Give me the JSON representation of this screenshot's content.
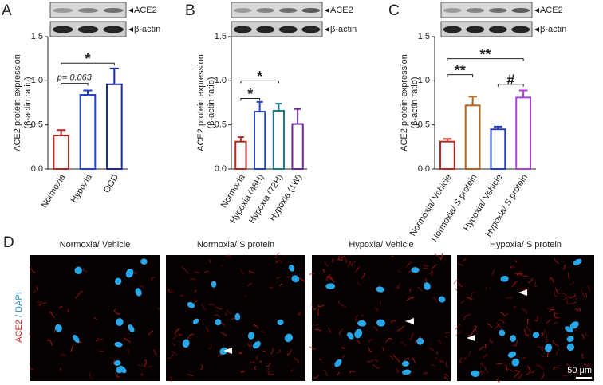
{
  "chart_data": [
    {
      "type": "bar",
      "panel_label": "A",
      "blot_labels": [
        "ACE2",
        "β-actin"
      ],
      "ylabel": [
        "ACE2 protein expression",
        "(β-actin ratio)"
      ],
      "categories": [
        "Normoxia",
        "Hypoxia",
        "OGD"
      ],
      "values": [
        0.38,
        0.84,
        0.96
      ],
      "errors": [
        0.06,
        0.05,
        0.18
      ],
      "colors": [
        "#b22a22",
        "#2340c8",
        "#1b2aa0"
      ],
      "ylim": [
        0,
        1.5
      ],
      "yticks": [
        {
          "value": 0,
          "label": "0.0"
        },
        0.5,
        {
          "value": 1,
          "label": "1.0"
        },
        1.5
      ],
      "annotations": [
        {
          "text": "*",
          "from": 0,
          "to": 2,
          "y": 1.2
        },
        {
          "text": "p= 0.063",
          "from": 0,
          "to": 1,
          "y": 0.97
        }
      ]
    },
    {
      "type": "bar",
      "panel_label": "B",
      "blot_labels": [
        "ACE2",
        "β-actin"
      ],
      "ylabel": [
        "ACE2 protein expression",
        "(β-actin ratio)"
      ],
      "categories": [
        "Normoxia",
        "Hypoxia (48H)",
        "Hypoxia (72H)",
        "Hypoxia (1W)"
      ],
      "values": [
        0.31,
        0.65,
        0.66,
        0.51
      ],
      "errors": [
        0.05,
        0.11,
        0.08,
        0.17
      ],
      "colors": [
        "#b22a22",
        "#2340c8",
        "#1a7a8a",
        "#6a2a9a"
      ],
      "ylim": [
        0,
        1.5
      ],
      "yticks": [
        {
          "value": 0,
          "label": "0.0"
        },
        0.5,
        {
          "value": 1,
          "label": "1.0"
        },
        1.5
      ],
      "annotations": [
        {
          "text": "*",
          "from": 0,
          "to": 1,
          "y": 0.8
        },
        {
          "text": "*",
          "from": 0,
          "to": 2,
          "y": 1.0
        }
      ]
    },
    {
      "type": "bar",
      "panel_label": "C",
      "blot_labels": [
        "ACE2",
        "β-actin"
      ],
      "ylabel": [
        "ACE2 protein expression",
        "(β-actin ratio)"
      ],
      "categories": [
        "Normoxia/ Vehicle",
        "Normoxia/ S protein",
        "Hypoxia/ Vehicle",
        "Hypoxia/ S protein"
      ],
      "values": [
        0.31,
        0.72,
        0.45,
        0.81
      ],
      "errors": [
        0.03,
        0.1,
        0.03,
        0.08
      ],
      "colors": [
        "#b22a22",
        "#b5651d",
        "#2340c8",
        "#b040e0"
      ],
      "ylim": [
        0,
        1.5
      ],
      "yticks": [
        {
          "value": 0,
          "label": "0.0"
        },
        0.5,
        {
          "value": 1,
          "label": "1.0"
        },
        1.5
      ],
      "annotations": [
        {
          "text": "**",
          "from": 0,
          "to": 3,
          "y": 1.25
        },
        {
          "text": "**",
          "from": 0,
          "to": 1,
          "y": 1.07
        },
        {
          "text": "#",
          "from": 2,
          "to": 3,
          "y": 0.96
        }
      ]
    }
  ],
  "panel_d": {
    "label": "D",
    "stain_label": [
      "ACE2",
      "/ DAPI"
    ],
    "panels": [
      {
        "title": "Normoxia/ Vehicle"
      },
      {
        "title": "Normoxia/ S protein"
      },
      {
        "title": "Hypoxia/ Vehicle"
      },
      {
        "title": "Hypoxia/ S protein"
      }
    ],
    "scale_bar": "50 μm"
  }
}
